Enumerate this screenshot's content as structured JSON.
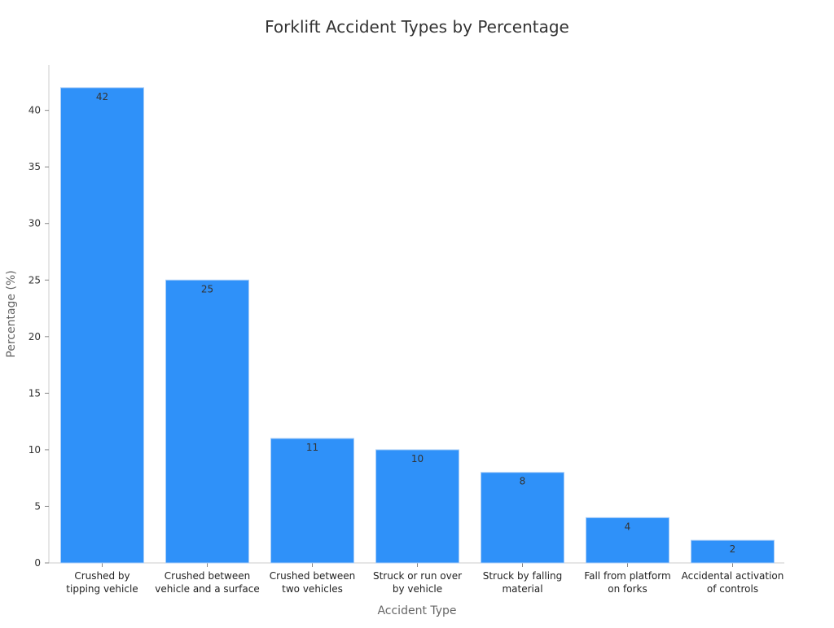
{
  "chart_data": {
    "type": "bar",
    "title": "Forklift Accident Types by Percentage",
    "xlabel": "Accident Type",
    "ylabel": "Percentage (%)",
    "categories": [
      [
        "Crushed by",
        "tipping vehicle"
      ],
      [
        "Crushed between",
        "vehicle and a surface"
      ],
      [
        "Crushed between",
        "two vehicles"
      ],
      [
        "Struck or run over",
        "by vehicle"
      ],
      [
        "Struck by falling",
        "material"
      ],
      [
        "Fall from platform",
        "on forks"
      ],
      [
        "Accidental activation",
        "of controls"
      ]
    ],
    "values": [
      42,
      25,
      11,
      10,
      8,
      4,
      2
    ],
    "data_labels": [
      "42",
      "25",
      "11",
      "10",
      "8",
      "4",
      "2"
    ],
    "ylim": [
      0,
      44
    ],
    "yticks": [
      0,
      5,
      10,
      15,
      20,
      25,
      30,
      35,
      40
    ],
    "grid": false,
    "bar_color": "#2f91f9",
    "bar_edge_color": "#a9cdf7"
  }
}
